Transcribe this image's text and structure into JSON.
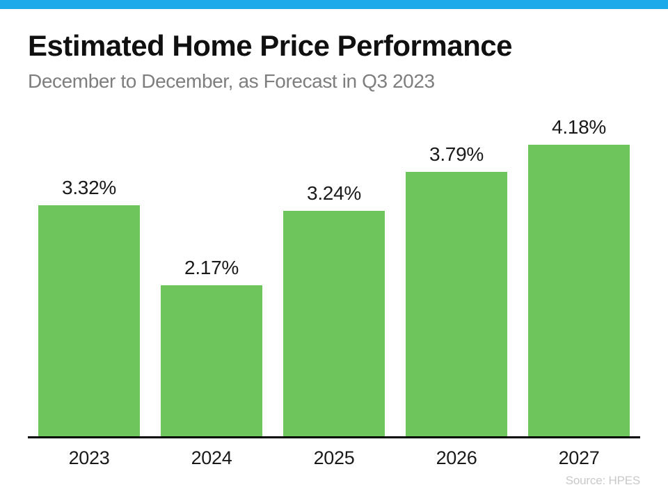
{
  "header": {
    "title": "Estimated Home Price Performance",
    "subtitle": "December to December, as Forecast in Q3 2023"
  },
  "footer": {
    "source": "Source: HPES"
  },
  "colors": {
    "accent_bar": "#1CAAEB",
    "bar_fill": "#6EC55C",
    "title": "#101010",
    "subtitle": "#7E7E7E",
    "axis": "#000000",
    "value_labels": "#1A1A1A",
    "source": "#C9C9C9"
  },
  "chart_data": {
    "type": "bar",
    "title": "Estimated Home Price Performance",
    "subtitle": "December to December, as Forecast in Q3 2023",
    "categories": [
      "2023",
      "2024",
      "2025",
      "2026",
      "2027"
    ],
    "values": [
      3.32,
      2.17,
      3.24,
      3.79,
      4.18
    ],
    "value_labels": [
      "3.32%",
      "2.17%",
      "3.24%",
      "3.79%",
      "4.18%"
    ],
    "xlabel": "",
    "ylabel": "",
    "ylim": [
      0,
      4.66
    ],
    "grid": false,
    "legend": false,
    "bar_color": "#6EC55C",
    "source": "Source: HPES"
  }
}
